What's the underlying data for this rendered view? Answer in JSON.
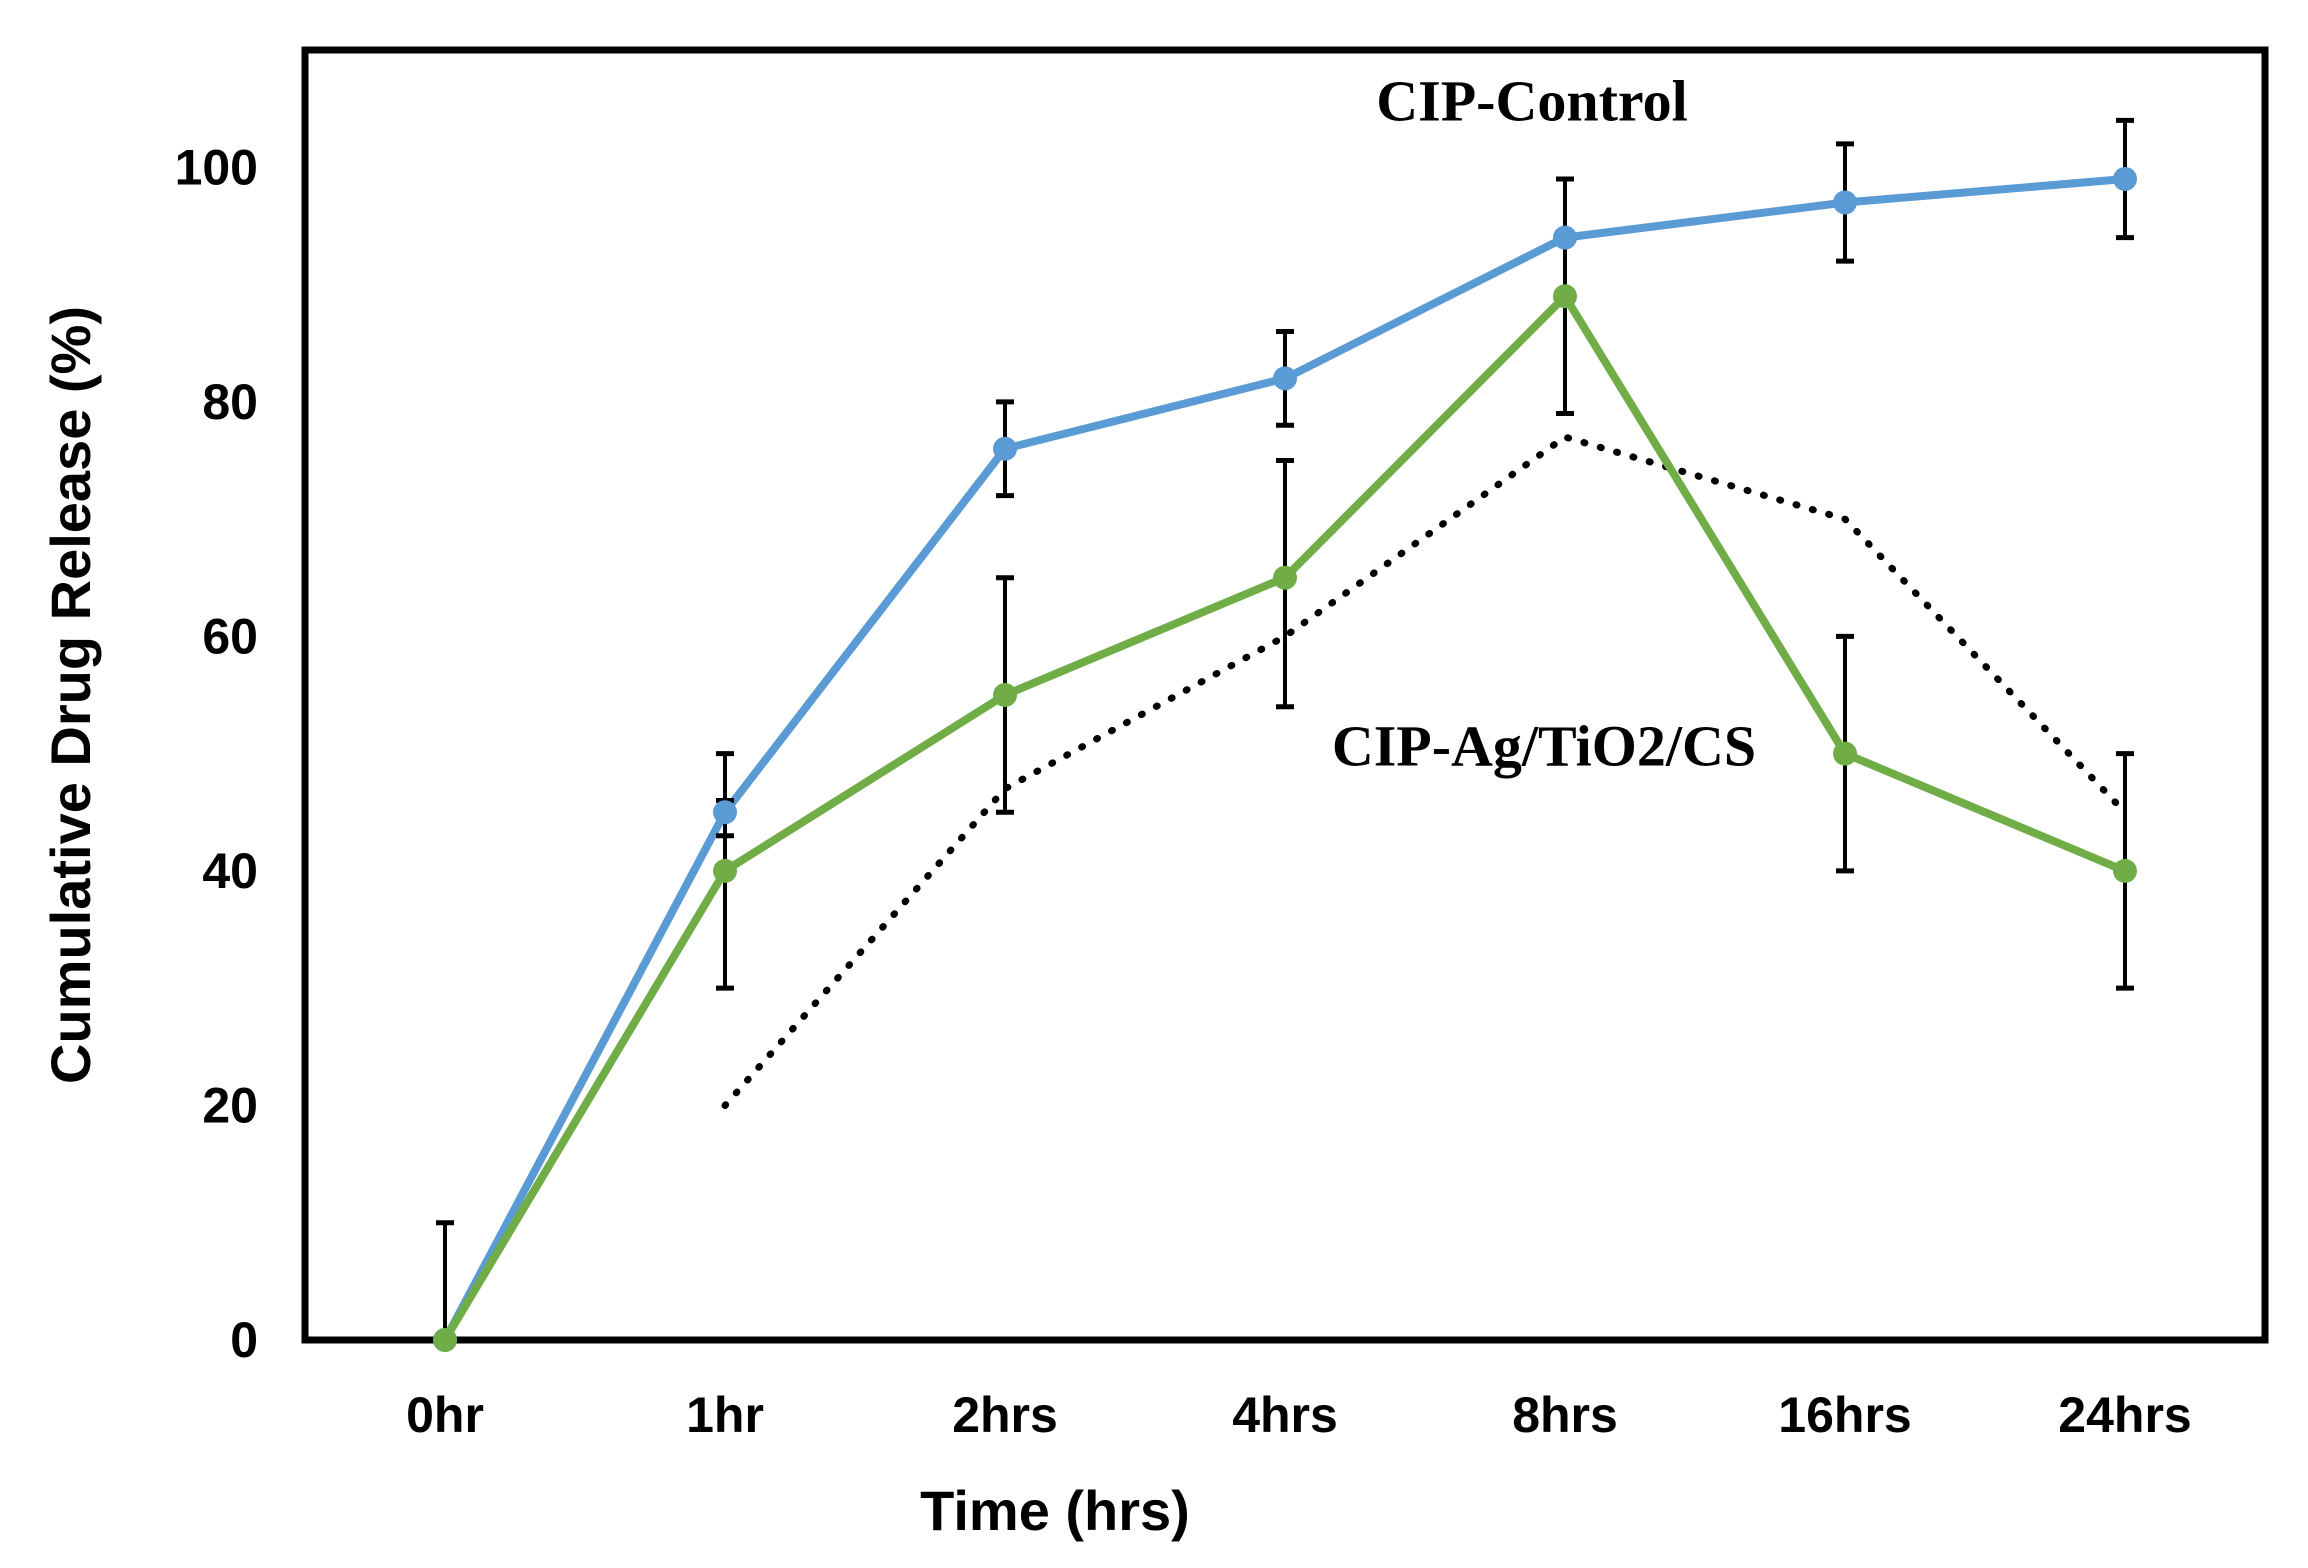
{
  "chart_data": {
    "type": "line",
    "categories": [
      "0hr",
      "1hr",
      "2hrs",
      "4hrs",
      "8hrs",
      "16hrs",
      "24hrs"
    ],
    "xlabel": "Time (hrs)",
    "ylabel": "Cumulative Drug  Release (%)",
    "ylim": [
      0,
      110
    ],
    "yticks": [
      0,
      20,
      40,
      60,
      80,
      100
    ],
    "grid": false,
    "legend": "none",
    "series": [
      {
        "name": "CIP-Control",
        "color": "#5b9bd5",
        "values": [
          0,
          45,
          76,
          82,
          94,
          97,
          99
        ],
        "error_low": [
          null,
          2,
          4,
          4,
          5,
          5,
          5
        ],
        "error_high": [
          null,
          5,
          4,
          4,
          5,
          5,
          5
        ],
        "marker": "circle"
      },
      {
        "name": "CIP-Ag/TiO2/CS",
        "color": "#70ad47",
        "values": [
          0,
          40,
          55,
          65,
          89,
          50,
          40
        ],
        "error_low": [
          0,
          10,
          10,
          11,
          10,
          10,
          10
        ],
        "error_high": [
          10,
          6,
          10,
          10,
          10,
          10,
          10
        ],
        "marker": "circle"
      },
      {
        "name": "",
        "color": "#000000",
        "style": "dotted",
        "x": [
          "1hr",
          "2hrs",
          "4hrs",
          "8hrs",
          "16hrs",
          "24hrs"
        ],
        "values": [
          20,
          47,
          60,
          77,
          70,
          45
        ]
      }
    ],
    "annotations": [
      {
        "text": "CIP-Control",
        "near": "8hrs",
        "value": 104
      },
      {
        "text": "CIP-Ag/TiO2/CS",
        "near": "8hrs",
        "value": 49
      }
    ]
  }
}
